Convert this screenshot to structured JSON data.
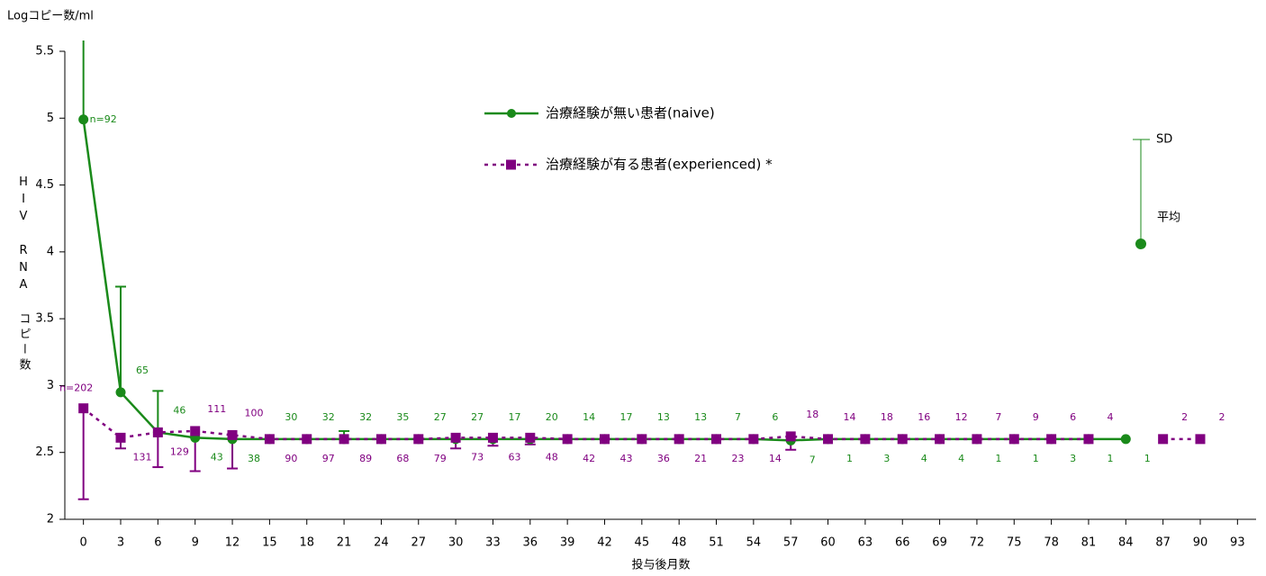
{
  "chart_data": {
    "type": "line",
    "y_label_top": "Logコピー数/ml",
    "y_label": "HIV RNA コピー数",
    "x_label": "投与後月数",
    "xlim": [
      -1.5,
      94.5
    ],
    "xticks": [
      0,
      3,
      6,
      9,
      12,
      15,
      18,
      21,
      24,
      27,
      30,
      33,
      36,
      39,
      42,
      45,
      48,
      51,
      54,
      57,
      60,
      63,
      66,
      69,
      72,
      75,
      78,
      81,
      84,
      87,
      90,
      93
    ],
    "ylim": [
      2,
      5.5
    ],
    "yticks": [
      2,
      2.5,
      3,
      3.5,
      4,
      4.5,
      5,
      5.5
    ],
    "grid": false,
    "x": [
      0,
      3,
      6,
      9,
      12,
      15,
      18,
      21,
      24,
      27,
      30,
      33,
      36,
      39,
      42,
      45,
      48,
      51,
      54,
      57,
      60,
      63,
      66,
      69,
      72,
      75,
      78,
      81,
      84,
      87,
      90
    ],
    "series": [
      {
        "name": "治療経験が無い患者(naive)",
        "color": "#1a8a1a",
        "line": "solid",
        "marker": "circle",
        "error_direction": "up",
        "values": [
          4.99,
          2.95,
          2.65,
          2.61,
          2.6,
          2.6,
          2.6,
          2.6,
          2.6,
          2.6,
          2.6,
          2.6,
          2.6,
          2.6,
          2.6,
          2.6,
          2.6,
          2.6,
          2.6,
          2.59,
          2.6,
          2.6,
          2.6,
          2.6,
          2.6,
          2.6,
          2.6,
          2.6,
          2.6,
          null,
          null
        ],
        "sd": [
          0.6,
          0.79,
          0.31,
          null,
          null,
          null,
          null,
          0.06,
          null,
          null,
          null,
          null,
          null,
          null,
          null,
          null,
          null,
          null,
          null,
          null,
          null,
          null,
          null,
          null,
          null,
          null,
          null,
          null,
          null,
          null,
          null
        ],
        "n_labels": [
          "n=92",
          "65",
          "46",
          "43",
          "38",
          "30",
          "32",
          "32",
          "35",
          "27",
          "27",
          "17",
          "20",
          "14",
          "17",
          "13",
          "13",
          "7",
          "6",
          "7",
          "1",
          "3",
          "4",
          "4",
          "1",
          "1",
          "3",
          "1",
          "1",
          null,
          null
        ]
      },
      {
        "name": "治療経験が有る患者(experienced) *",
        "color": "#800080",
        "line": "dotted",
        "marker": "square",
        "error_direction": "down",
        "values": [
          2.83,
          2.61,
          2.65,
          2.66,
          2.63,
          2.6,
          2.6,
          2.6,
          2.6,
          2.6,
          2.61,
          2.61,
          2.61,
          2.6,
          2.6,
          2.6,
          2.6,
          2.6,
          2.6,
          2.62,
          2.6,
          2.6,
          2.6,
          2.6,
          2.6,
          2.6,
          2.6,
          2.6,
          null,
          2.6,
          2.6
        ],
        "sd": [
          0.68,
          0.08,
          0.26,
          0.3,
          0.25,
          null,
          null,
          null,
          null,
          null,
          0.08,
          0.06,
          0.05,
          null,
          null,
          null,
          null,
          null,
          null,
          0.1,
          null,
          null,
          null,
          null,
          null,
          null,
          null,
          null,
          null,
          null,
          null
        ],
        "n_labels": [
          "n=202",
          "131",
          "129",
          "111",
          "100",
          "90",
          "97",
          "89",
          "68",
          "79",
          "73",
          "63",
          "48",
          "42",
          "43",
          "36",
          "21",
          "23",
          "14",
          "18",
          "14",
          "18",
          "16",
          "12",
          "7",
          "9",
          "6",
          "4",
          null,
          "2",
          "2"
        ]
      }
    ],
    "sd_key": {
      "sd_label": "SD",
      "mean_label": "平均"
    }
  }
}
